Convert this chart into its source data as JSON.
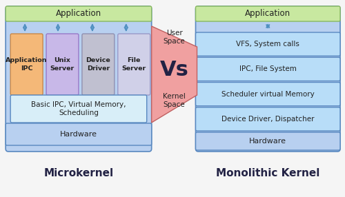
{
  "bg_color": "#f5f5f5",
  "title_left": "Microkernel",
  "title_right": "Monolithic Kernel",
  "vs_text": "Vs",
  "user_space_text": "User\nSpace",
  "kernel_space_text": "Kernel\nSpace",
  "left": {
    "app_box": {
      "label": "Application",
      "color": "#c8e8a0",
      "border": "#88b860"
    },
    "service_boxes": [
      {
        "label": "Application\nIPC",
        "color": "#f4b878",
        "border": "#c88848"
      },
      {
        "label": "Unix\nServer",
        "color": "#c8b8e8",
        "border": "#9878c8"
      },
      {
        "label": "Device\nDriver",
        "color": "#c0c0d0",
        "border": "#9090b0"
      },
      {
        "label": "File\nServer",
        "color": "#d0d0e8",
        "border": "#9898c8"
      }
    ],
    "kernel_box": {
      "label": "Basic IPC, Virtual Memory,\nScheduling",
      "color": "#d8eef8",
      "border": "#5888c0"
    },
    "hw_box": {
      "label": "Hardware",
      "color": "#b8d0f0",
      "border": "#5888c0"
    },
    "outer_box": {
      "color": "#b8d0f0",
      "border": "#5888c0"
    }
  },
  "right": {
    "app_box": {
      "label": "Application",
      "color": "#c8e8a0",
      "border": "#88b860"
    },
    "layer_boxes": [
      {
        "label": "VFS, System calls",
        "color": "#b8ddf8",
        "border": "#5888c0"
      },
      {
        "label": "IPC, File System",
        "color": "#b8ddf8",
        "border": "#5888c0"
      },
      {
        "label": "Scheduler virtual Memory",
        "color": "#b8ddf8",
        "border": "#5888c0"
      },
      {
        "label": "Device Driver, Dispatcher",
        "color": "#b8ddf8",
        "border": "#5888c0"
      }
    ],
    "hw_box": {
      "label": "Hardware",
      "color": "#b8d0f0",
      "border": "#5888c0"
    },
    "outer_box": {
      "color": "#b8d0f0",
      "border": "#5888c0"
    }
  },
  "middle_tri_color": "#f0a0a0",
  "middle_tri_border": "#c06060",
  "arrow_color": "#5090c0",
  "title_color": "#222244",
  "text_color": "#222222"
}
